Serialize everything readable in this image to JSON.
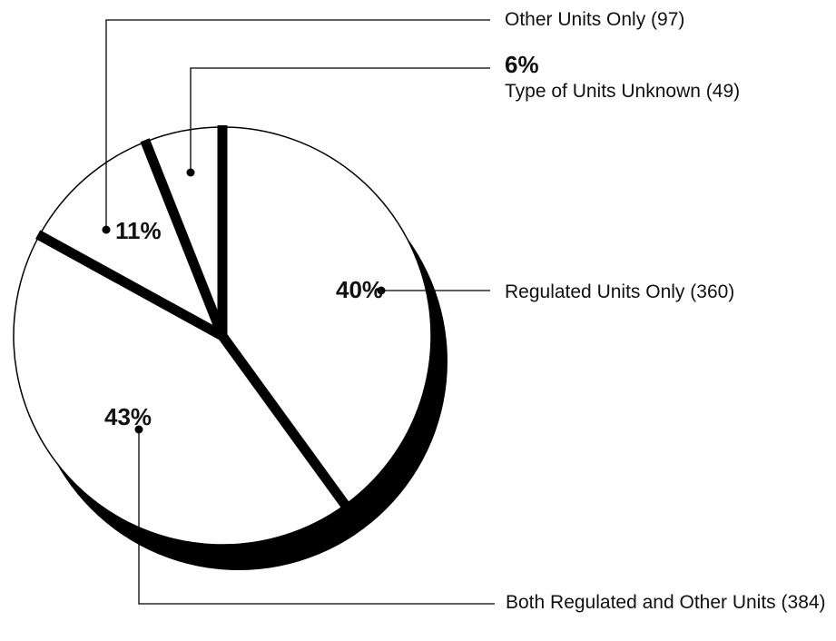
{
  "chart_data": {
    "type": "pie",
    "categories": [
      "Regulated Units Only (360)",
      "Both Regulated and Other Units (384)",
      "Other Units Only (97)",
      "Type of Units Unknown (49)"
    ],
    "values": [
      40,
      43,
      11,
      6
    ],
    "value_labels": [
      "40%",
      "43%",
      "11%",
      "6%"
    ],
    "colors": [
      "#ffffff",
      "#ffffff",
      "#ffffff",
      "#ffffff"
    ]
  }
}
